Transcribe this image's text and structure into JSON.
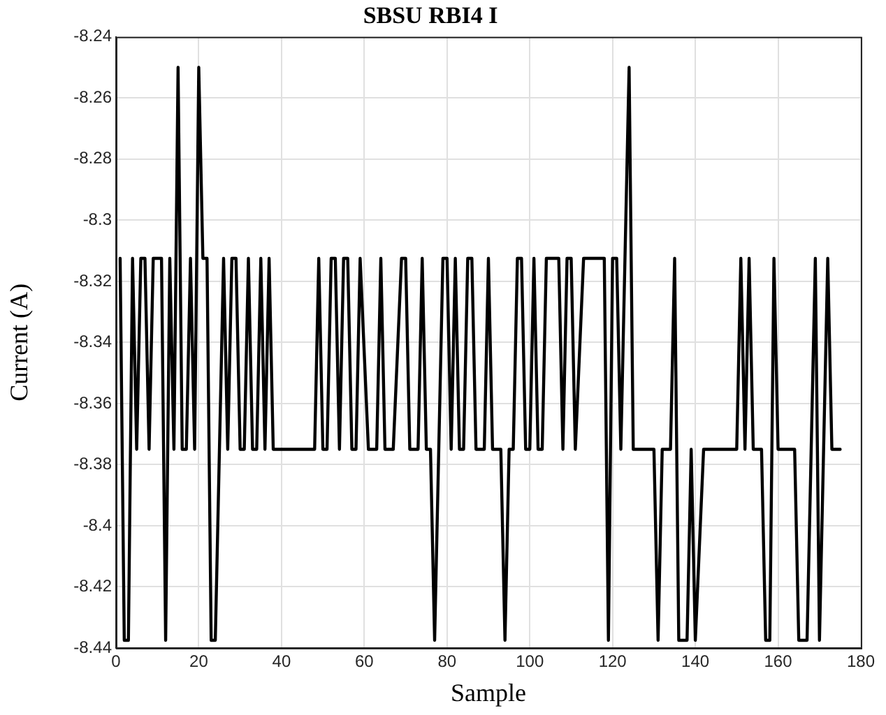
{
  "chart_data": {
    "type": "line",
    "title": "SBSU RBI4 I",
    "xlabel": "Sample",
    "ylabel": "Current (A)",
    "xlim": [
      0,
      180
    ],
    "xticks": [
      0,
      20,
      40,
      60,
      80,
      100,
      120,
      140,
      160,
      180
    ],
    "ylim": [
      -8.44,
      -8.24
    ],
    "yticks": [
      -8.44,
      -8.42,
      -8.4,
      -8.38,
      -8.36,
      -8.34,
      -8.32,
      -8.3,
      -8.28,
      -8.26,
      -8.24
    ],
    "grid": true,
    "marker": "none",
    "line_style": "solid",
    "series": [
      {
        "color": "#000000",
        "x": [
          1,
          2,
          3,
          4,
          5,
          6,
          7,
          8,
          9,
          11,
          12,
          13,
          14,
          15,
          16,
          17,
          18,
          19,
          20,
          21,
          22,
          23,
          24,
          26,
          27,
          28,
          29,
          30,
          31,
          32,
          33,
          34,
          35,
          36,
          37,
          38,
          48,
          49,
          50,
          51,
          52,
          53,
          54,
          55,
          56,
          57,
          58,
          59,
          61,
          63,
          64,
          65,
          67,
          69,
          70,
          71,
          73,
          74,
          75,
          76,
          77,
          79,
          80,
          81,
          82,
          83,
          84,
          85,
          86,
          87,
          89,
          90,
          91,
          93,
          94,
          95,
          96,
          97,
          98,
          99,
          100,
          101,
          102,
          103,
          104,
          107,
          108,
          109,
          110,
          111,
          113,
          118,
          119,
          120,
          121,
          122,
          124,
          125,
          130,
          131,
          132,
          134,
          135,
          136,
          138,
          139,
          140,
          142,
          150,
          151,
          152,
          153,
          154,
          156,
          157,
          158,
          159,
          160,
          164,
          165,
          167,
          169,
          170,
          172,
          173,
          175
        ],
        "values": [
          -8.3125,
          -8.4375,
          -8.4375,
          -8.3125,
          -8.375,
          -8.3125,
          -8.3125,
          -8.375,
          -8.3125,
          -8.3125,
          -8.4375,
          -8.3125,
          -8.375,
          -8.25,
          -8.375,
          -8.375,
          -8.3125,
          -8.375,
          -8.25,
          -8.3125,
          -8.3125,
          -8.4375,
          -8.4375,
          -8.3125,
          -8.375,
          -8.3125,
          -8.3125,
          -8.375,
          -8.375,
          -8.3125,
          -8.375,
          -8.375,
          -8.3125,
          -8.375,
          -8.3125,
          -8.375,
          -8.375,
          -8.3125,
          -8.375,
          -8.375,
          -8.3125,
          -8.3125,
          -8.375,
          -8.3125,
          -8.3125,
          -8.375,
          -8.375,
          -8.3125,
          -8.375,
          -8.375,
          -8.3125,
          -8.375,
          -8.375,
          -8.3125,
          -8.3125,
          -8.375,
          -8.375,
          -8.3125,
          -8.375,
          -8.375,
          -8.4375,
          -8.3125,
          -8.3125,
          -8.375,
          -8.3125,
          -8.375,
          -8.375,
          -8.3125,
          -8.3125,
          -8.375,
          -8.375,
          -8.3125,
          -8.375,
          -8.375,
          -8.4375,
          -8.375,
          -8.375,
          -8.3125,
          -8.3125,
          -8.375,
          -8.375,
          -8.3125,
          -8.375,
          -8.375,
          -8.3125,
          -8.3125,
          -8.375,
          -8.3125,
          -8.3125,
          -8.375,
          -8.3125,
          -8.3125,
          -8.4375,
          -8.3125,
          -8.3125,
          -8.375,
          -8.25,
          -8.375,
          -8.375,
          -8.4375,
          -8.375,
          -8.375,
          -8.3125,
          -8.4375,
          -8.4375,
          -8.375,
          -8.4375,
          -8.375,
          -8.375,
          -8.3125,
          -8.375,
          -8.3125,
          -8.375,
          -8.375,
          -8.4375,
          -8.4375,
          -8.3125,
          -8.375,
          -8.375,
          -8.4375,
          -8.4375,
          -8.3125,
          -8.4375,
          -8.3125,
          -8.375,
          -8.375
        ]
      }
    ]
  }
}
